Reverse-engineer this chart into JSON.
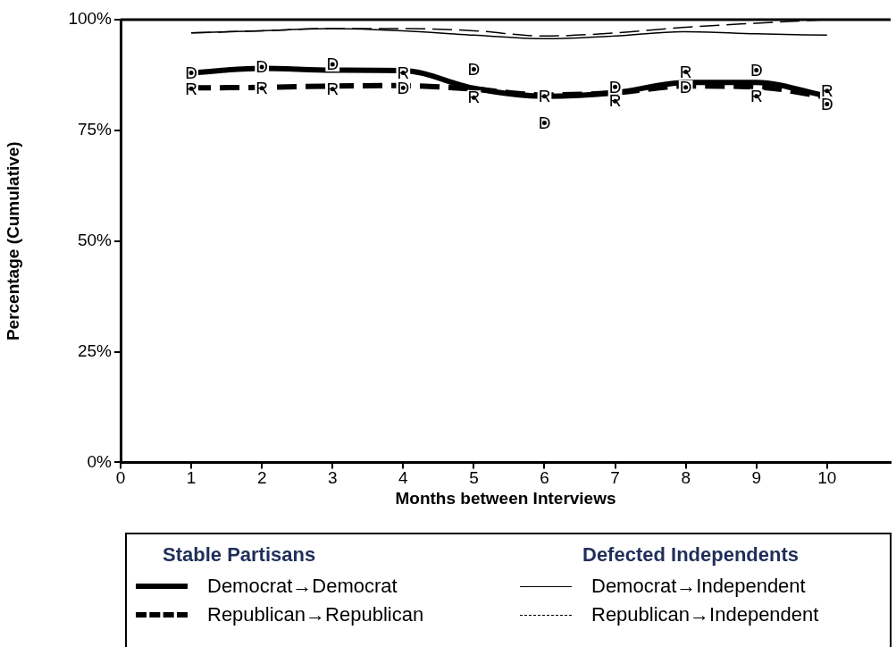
{
  "chart_data": {
    "type": "line",
    "xlabel": "Months between Interviews",
    "ylabel": "Percentage (Cumulative)",
    "x": [
      1,
      2,
      3,
      4,
      5,
      6,
      7,
      8,
      9,
      10
    ],
    "xlim": [
      0,
      10.9
    ],
    "xticks": [
      0,
      1,
      2,
      3,
      4,
      5,
      6,
      7,
      8,
      9,
      10
    ],
    "ylim": [
      0,
      100
    ],
    "yticks": [
      {
        "value": 0,
        "label": "0%"
      },
      {
        "value": 25,
        "label": "25%"
      },
      {
        "value": 50,
        "label": "50%"
      },
      {
        "value": 75,
        "label": "75%"
      },
      {
        "value": 100,
        "label": "100%"
      }
    ],
    "grid": false,
    "legend": "bottom",
    "series": [
      {
        "name": "Democrat→Democrat",
        "color": "#000000",
        "line_style": "solid",
        "values": [
          88.0,
          89.0,
          88.6,
          88.5,
          84.5,
          82.7,
          83.5,
          85.8,
          85.8,
          82.7
        ]
      },
      {
        "name": "Republican→Republican",
        "color": "#000000",
        "line_style": "dashed",
        "values": [
          84.6,
          84.7,
          85.0,
          85.1,
          84.3,
          83.0,
          83.5,
          85.0,
          84.8,
          82.5
        ]
      },
      {
        "name": "Democrat→Independent",
        "color": "#000000",
        "line_style": "solid",
        "values": [
          97.0,
          97.5,
          98.0,
          97.5,
          96.5,
          95.7,
          96.3,
          97.3,
          96.8,
          96.5
        ]
      },
      {
        "name": "Republican→Independent",
        "color": "#000000",
        "line_style": "dashed",
        "values": [
          97.0,
          97.5,
          98.0,
          98.0,
          97.5,
          96.3,
          97.0,
          98.3,
          99.2,
          100
        ]
      },
      {
        "type": "scatter",
        "marker": "circle",
        "color": "#000000",
        "values": [
          88,
          89.3,
          89.9,
          84.6,
          88.8,
          76.7,
          84.8,
          84.7,
          88.6,
          80.9
        ],
        "value_labels": [
          "D",
          "D",
          "D",
          "D",
          "D",
          "D",
          "D",
          "D",
          "D",
          "D"
        ]
      },
      {
        "type": "scatter",
        "marker": "circle",
        "color": "#000000",
        "values": [
          84.4,
          84.5,
          84.3,
          88,
          82.4,
          82.7,
          81.6,
          88.2,
          82.7,
          83.9
        ],
        "value_labels": [
          "R",
          "R",
          "R",
          "R",
          "R",
          "R",
          "R",
          "R",
          "R",
          "R"
        ]
      }
    ],
    "annotations": [
      "Stable Partisans",
      "Defected Independents"
    ]
  }
}
